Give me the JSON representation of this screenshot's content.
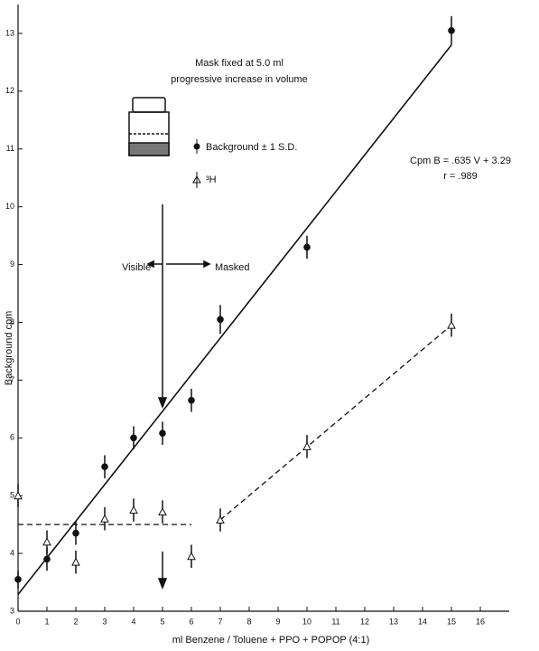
{
  "chart_data": {
    "type": "scatter",
    "xlabel": "ml Benzene / Toluene + PPO + POPOP (4:1)",
    "ylabel": "Background cpm",
    "annotations": [
      "Mask fixed at 5.0 ml",
      "progressive increase in volume",
      "Cpm B = .635 V + 3.29",
      "r = .989",
      "Visible",
      "Masked"
    ],
    "x": [
      0,
      1,
      2,
      3,
      4,
      5,
      6,
      7,
      10,
      15
    ],
    "series": [
      {
        "name": "Background ± 1 S.D.",
        "color": "#111111",
        "marker": "circle",
        "values": [
          3.55,
          3.9,
          4.35,
          5.5,
          6.0,
          6.08,
          6.65,
          8.05,
          9.3,
          13.05
        ],
        "errors": [
          0.15,
          0.2,
          0.2,
          0.2,
          0.2,
          0.2,
          0.2,
          0.25,
          0.2,
          0.25
        ]
      },
      {
        "name": "³H",
        "color": "#111111",
        "marker": "triangle",
        "values": [
          5.0,
          4.2,
          3.85,
          4.6,
          4.75,
          4.72,
          3.95,
          4.58,
          5.85,
          7.95
        ],
        "errors": [
          0.2,
          0.2,
          0.2,
          0.2,
          0.2,
          0.2,
          0.2,
          0.2,
          0.2,
          0.2
        ]
      }
    ],
    "lines": [
      {
        "x": [
          0,
          15
        ],
        "values": [
          3.29,
          12.8
        ],
        "dash": false
      },
      {
        "x": [
          0,
          6
        ],
        "values": [
          4.5,
          4.5
        ],
        "dash": true
      },
      {
        "x": [
          7,
          15
        ],
        "values": [
          4.58,
          7.95
        ],
        "dash": true
      }
    ],
    "xlim": [
      0,
      17
    ],
    "ylim": [
      3,
      13.5
    ],
    "xticks": [
      0,
      1,
      2,
      3,
      4,
      5,
      6,
      7,
      8,
      9,
      10,
      11,
      12,
      13,
      14,
      15,
      16
    ],
    "yticks": [
      3,
      4,
      5,
      6,
      7,
      8,
      9,
      10,
      11,
      12,
      13
    ],
    "grid": false
  }
}
